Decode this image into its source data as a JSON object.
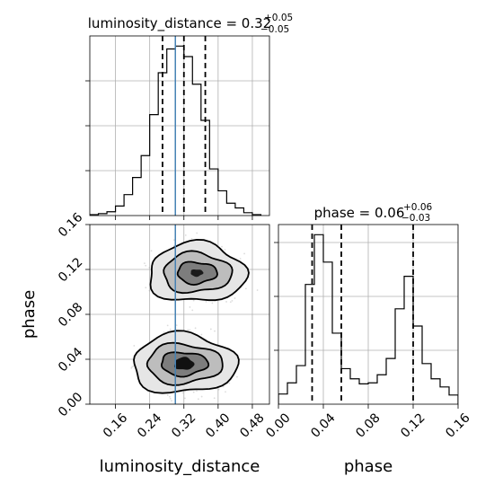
{
  "chart_data": {
    "type": "corner",
    "parameters": [
      "luminosity_distance",
      "phase"
    ],
    "titles": {
      "luminosity_distance": {
        "prefix": "luminosity_distance = 0.32",
        "plus": "+0.05",
        "minus": "−0.05"
      },
      "phase": {
        "prefix": "phase = 0.06",
        "plus": "+0.06",
        "minus": "−0.03"
      }
    },
    "xlabels": {
      "bottom_left": "luminosity_distance",
      "bottom_right": "phase"
    },
    "ylabel": "phase",
    "ranges": {
      "luminosity_distance": [
        0.1,
        0.52
      ],
      "phase": [
        0.0,
        0.16
      ]
    },
    "ticks": {
      "luminosity_distance": [
        0.16,
        0.24,
        0.32,
        0.4,
        0.48
      ],
      "luminosity_distance_labels": [
        "0.16",
        "0.24",
        "0.32",
        "0.40",
        "0.48"
      ],
      "phase": [
        0.0,
        0.04,
        0.08,
        0.12,
        0.16
      ],
      "phase_labels": [
        "0.00",
        "0.04",
        "0.08",
        "0.12",
        "0.16"
      ]
    },
    "truth": {
      "luminosity_distance": 0.3
    },
    "quantiles": {
      "luminosity_distance": [
        0.27,
        0.32,
        0.37
      ],
      "phase": [
        0.03,
        0.056,
        0.12
      ]
    },
    "hist_luminosity_distance": {
      "bin_edges": [
        0.1,
        0.12,
        0.14,
        0.16,
        0.18,
        0.2,
        0.22,
        0.24,
        0.26,
        0.28,
        0.3,
        0.32,
        0.34,
        0.36,
        0.38,
        0.4,
        0.42,
        0.44,
        0.46,
        0.48,
        0.5
      ],
      "counts": [
        1,
        2,
        4,
        10,
        22,
        40,
        63,
        106,
        150,
        175,
        178,
        167,
        138,
        100,
        49,
        26,
        13,
        8,
        3,
        1
      ]
    },
    "hist_phase": {
      "bin_edges": [
        0.0,
        0.008,
        0.016,
        0.024,
        0.032,
        0.04,
        0.048,
        0.056,
        0.064,
        0.072,
        0.08,
        0.088,
        0.096,
        0.104,
        0.112,
        0.12,
        0.128,
        0.136,
        0.144,
        0.152,
        0.16
      ],
      "counts": [
        10,
        21,
        38,
        118,
        167,
        140,
        70,
        35,
        25,
        20,
        21,
        29,
        45,
        94,
        126,
        77,
        40,
        25,
        17,
        9
      ]
    },
    "density_modes": [
      {
        "luminosity_distance": 0.35,
        "phase": 0.117
      },
      {
        "luminosity_distance": 0.32,
        "phase": 0.036
      }
    ],
    "grid": true
  }
}
